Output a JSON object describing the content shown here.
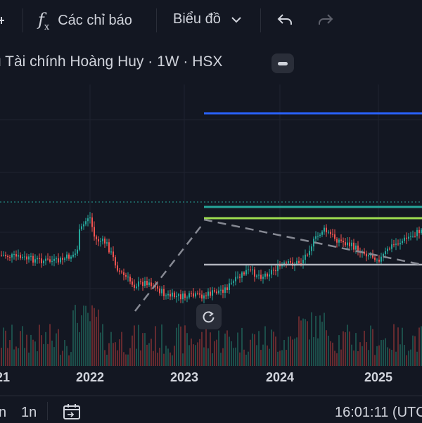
{
  "toolbar": {
    "indicators_label": "Các chỉ báo",
    "chart_type_label": "Biểu đồ",
    "icons": [
      "compare-icon",
      "function-fx-icon",
      "chevron-down-icon",
      "undo-icon",
      "redo-icon"
    ]
  },
  "legend": {
    "title": "ụ Tài chính Hoàng Huy · 1W · HSX"
  },
  "chart_data": {
    "type": "candlestick",
    "x_ticks": [
      "21",
      "2022",
      "2023",
      "2024",
      "2025"
    ],
    "colors": {
      "up": "#26a69a",
      "down": "#ef5350",
      "blue_line": "#2962ff",
      "green_line": "#26a69a",
      "light_green_line": "#9cdb4f",
      "gray_line": "#b2b5be",
      "dashed_line": "#868993",
      "dotted_line": "#26a69a"
    }
  },
  "bottom_bar": {
    "range_m": "n",
    "range_1m": "1n",
    "time": "16:01:11 (UTC"
  }
}
